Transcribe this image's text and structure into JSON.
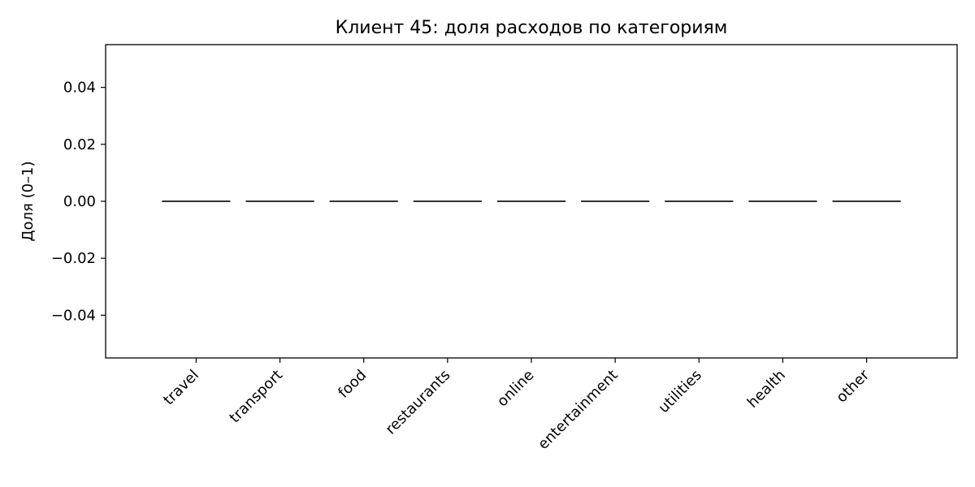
{
  "chart_data": {
    "type": "bar",
    "title": "Клиент 45: доля расходов по категориям",
    "xlabel": "",
    "ylabel": "Доля (0–1)",
    "categories": [
      "travel",
      "transport",
      "food",
      "restaurants",
      "online",
      "entertainment",
      "utilities",
      "health",
      "other"
    ],
    "values": [
      0,
      0,
      0,
      0,
      0,
      0,
      0,
      0,
      0
    ],
    "ylim": [
      -0.055,
      0.055
    ],
    "yticks": [
      -0.04,
      -0.02,
      0.0,
      0.02,
      0.04
    ],
    "ytick_labels": [
      "−0.04",
      "−0.02",
      "0.00",
      "0.02",
      "0.04"
    ],
    "grid": false,
    "bar_color": "#1f77b4",
    "edge_color": "#000000"
  }
}
